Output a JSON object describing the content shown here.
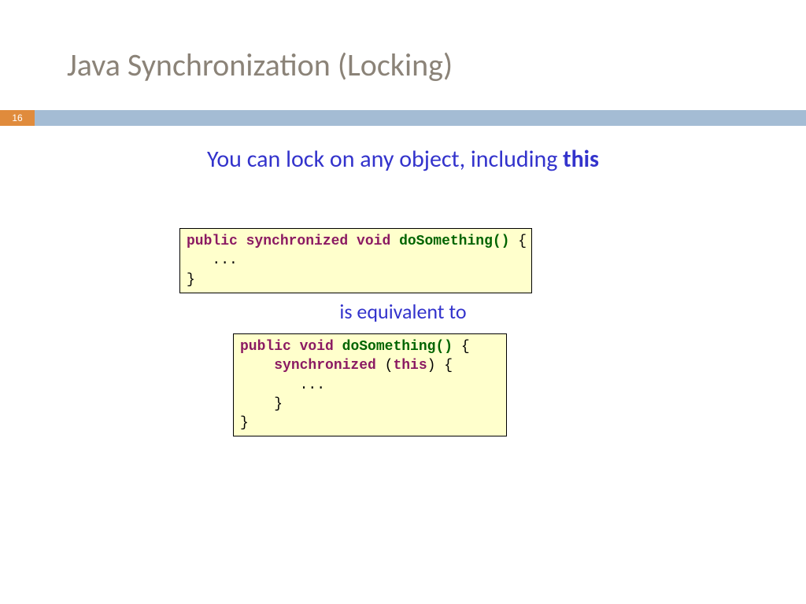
{
  "colors": {
    "title": "#8b8378",
    "bar": "#a4bcd4",
    "badge_bg": "#e08b3c",
    "subtitle": "#3333cc",
    "code_bg": "#ffffcc",
    "keyword": "#8b1a62",
    "function": "#006400",
    "plain": "#000000"
  },
  "page_number": "16",
  "title": "Java Synchronization (Locking)",
  "subtitle_prefix": "You can lock on any object, including ",
  "subtitle_bold": "this",
  "mid_text": "is equivalent to",
  "code1": {
    "tokens": [
      {
        "t": "public synchronized void",
        "c": "keyword"
      },
      {
        "t": " ",
        "c": "plain"
      },
      {
        "t": "doSomething()",
        "c": "function"
      },
      {
        "t": " {\n   ...\n}",
        "c": "plain"
      }
    ]
  },
  "code2": {
    "tokens": [
      {
        "t": "public void",
        "c": "keyword"
      },
      {
        "t": " ",
        "c": "plain"
      },
      {
        "t": "doSomething()",
        "c": "function"
      },
      {
        "t": " {\n    ",
        "c": "plain"
      },
      {
        "t": "synchronized",
        "c": "keyword"
      },
      {
        "t": " (",
        "c": "plain"
      },
      {
        "t": "this",
        "c": "keyword"
      },
      {
        "t": ") {\n       ...\n    }\n}",
        "c": "plain"
      }
    ]
  }
}
